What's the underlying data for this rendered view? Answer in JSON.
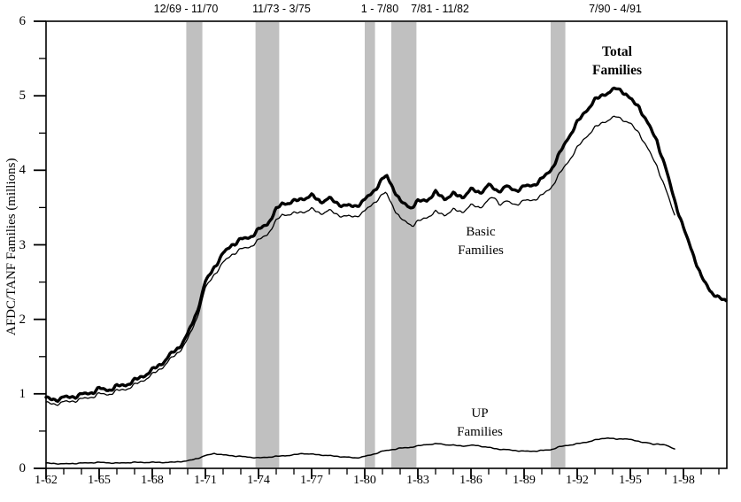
{
  "figure": {
    "background": "#ffffff",
    "line_color": "#000000",
    "recession_band_color": "#c0c0c0"
  },
  "chart_data": {
    "type": "line",
    "title": "",
    "xlabel": "",
    "ylabel": "AFDC/TANF Families (millions)",
    "ylim": [
      0,
      6
    ],
    "y_major_ticks": [
      0,
      1,
      2,
      3,
      4,
      5,
      6
    ],
    "y_minor_step": 0.5,
    "x_range_years": [
      1962,
      2000.45
    ],
    "x_minor_step_years": 1,
    "grid": false,
    "legend": "inline series labels",
    "x_major_ticks": [
      {
        "year": 1962,
        "label": "1-62"
      },
      {
        "year": 1965,
        "label": "1-65"
      },
      {
        "year": 1968,
        "label": "1-68"
      },
      {
        "year": 1971,
        "label": "1-71"
      },
      {
        "year": 1974,
        "label": "1-74"
      },
      {
        "year": 1977,
        "label": "1-77"
      },
      {
        "year": 1980,
        "label": "1-80"
      },
      {
        "year": 1983,
        "label": "1-83"
      },
      {
        "year": 1986,
        "label": "1-86"
      },
      {
        "year": 1989,
        "label": "1-89"
      },
      {
        "year": 1992,
        "label": "1-92"
      },
      {
        "year": 1995,
        "label": "1-95"
      },
      {
        "year": 1998,
        "label": "1-98"
      }
    ],
    "recessions": [
      {
        "label": "12/69 - 11/70",
        "start_year": 1969.92,
        "end_year": 1970.83,
        "label_anchor_year": 1969.9
      },
      {
        "label": "11/73 - 3/75",
        "start_year": 1973.83,
        "end_year": 1975.17,
        "label_anchor_year": 1975.3
      },
      {
        "label": "1 - 7/80",
        "start_year": 1980.0,
        "end_year": 1980.58,
        "label_anchor_year": 1980.85
      },
      {
        "label": "7/81 - 11/82",
        "start_year": 1981.5,
        "end_year": 1982.92,
        "label_anchor_year": 1984.25
      },
      {
        "label": "7/90 - 4/91",
        "start_year": 1990.5,
        "end_year": 1991.33,
        "label_anchor_year": 1994.15
      }
    ],
    "series": [
      {
        "name": "Total Families",
        "label_lines": [
          "Total",
          "Families"
        ],
        "label_anchor": {
          "year": 1994.25,
          "value": 5.72
        },
        "stroke_width": 3.4,
        "seasonal_wiggle": 0.028,
        "points": [
          [
            1962.0,
            0.94
          ],
          [
            1962.5,
            0.92
          ],
          [
            1963.0,
            0.95
          ],
          [
            1963.5,
            0.96
          ],
          [
            1964.0,
            0.99
          ],
          [
            1964.5,
            1.01
          ],
          [
            1965.0,
            1.07
          ],
          [
            1965.5,
            1.05
          ],
          [
            1966.0,
            1.1
          ],
          [
            1966.5,
            1.12
          ],
          [
            1967.0,
            1.18
          ],
          [
            1967.5,
            1.24
          ],
          [
            1968.0,
            1.32
          ],
          [
            1968.5,
            1.4
          ],
          [
            1969.0,
            1.52
          ],
          [
            1969.5,
            1.62
          ],
          [
            1970.0,
            1.8
          ],
          [
            1970.5,
            2.08
          ],
          [
            1971.0,
            2.5
          ],
          [
            1971.5,
            2.7
          ],
          [
            1972.0,
            2.88
          ],
          [
            1972.5,
            3.0
          ],
          [
            1973.0,
            3.07
          ],
          [
            1973.5,
            3.1
          ],
          [
            1974.0,
            3.2
          ],
          [
            1974.5,
            3.28
          ],
          [
            1975.0,
            3.47
          ],
          [
            1975.33,
            3.55
          ],
          [
            1976.0,
            3.58
          ],
          [
            1976.5,
            3.62
          ],
          [
            1977.0,
            3.66
          ],
          [
            1977.5,
            3.58
          ],
          [
            1978.0,
            3.62
          ],
          [
            1978.5,
            3.55
          ],
          [
            1979.0,
            3.52
          ],
          [
            1979.5,
            3.52
          ],
          [
            1980.0,
            3.6
          ],
          [
            1980.5,
            3.72
          ],
          [
            1981.0,
            3.88
          ],
          [
            1981.25,
            3.92
          ],
          [
            1981.75,
            3.7
          ],
          [
            1982.0,
            3.58
          ],
          [
            1982.6,
            3.5
          ],
          [
            1983.0,
            3.58
          ],
          [
            1983.5,
            3.6
          ],
          [
            1984.0,
            3.7
          ],
          [
            1984.5,
            3.62
          ],
          [
            1985.0,
            3.68
          ],
          [
            1985.5,
            3.64
          ],
          [
            1986.0,
            3.74
          ],
          [
            1986.5,
            3.7
          ],
          [
            1987.0,
            3.8
          ],
          [
            1987.5,
            3.72
          ],
          [
            1988.0,
            3.78
          ],
          [
            1988.5,
            3.73
          ],
          [
            1989.0,
            3.78
          ],
          [
            1989.5,
            3.8
          ],
          [
            1990.0,
            3.88
          ],
          [
            1990.5,
            4.0
          ],
          [
            1991.0,
            4.22
          ],
          [
            1991.5,
            4.44
          ],
          [
            1992.0,
            4.64
          ],
          [
            1992.5,
            4.8
          ],
          [
            1993.0,
            4.94
          ],
          [
            1993.5,
            5.02
          ],
          [
            1994.0,
            5.07
          ],
          [
            1994.25,
            5.1
          ],
          [
            1994.75,
            5.03
          ],
          [
            1995.0,
            4.95
          ],
          [
            1995.5,
            4.85
          ],
          [
            1996.0,
            4.62
          ],
          [
            1996.5,
            4.4
          ],
          [
            1997.0,
            4.02
          ],
          [
            1997.5,
            3.6
          ],
          [
            1998.0,
            3.22
          ],
          [
            1998.5,
            2.91
          ],
          [
            1999.0,
            2.57
          ],
          [
            1999.5,
            2.39
          ],
          [
            2000.0,
            2.28
          ],
          [
            2000.4,
            2.25
          ]
        ]
      },
      {
        "name": "Basic Families",
        "label_lines": [
          "Basic",
          "Families"
        ],
        "label_anchor": {
          "year": 1986.55,
          "value": 3.29
        },
        "stroke_width": 1.3,
        "seasonal_wiggle": 0.022,
        "points": [
          [
            1962.0,
            0.88
          ],
          [
            1962.5,
            0.86
          ],
          [
            1963.0,
            0.89
          ],
          [
            1963.5,
            0.9
          ],
          [
            1964.0,
            0.93
          ],
          [
            1964.5,
            0.95
          ],
          [
            1965.0,
            1.0
          ],
          [
            1965.5,
            0.99
          ],
          [
            1966.0,
            1.04
          ],
          [
            1966.5,
            1.06
          ],
          [
            1967.0,
            1.12
          ],
          [
            1967.5,
            1.18
          ],
          [
            1968.0,
            1.26
          ],
          [
            1968.5,
            1.34
          ],
          [
            1969.0,
            1.46
          ],
          [
            1969.5,
            1.56
          ],
          [
            1970.0,
            1.73
          ],
          [
            1970.5,
            2.0
          ],
          [
            1971.0,
            2.42
          ],
          [
            1971.5,
            2.6
          ],
          [
            1972.0,
            2.76
          ],
          [
            1972.5,
            2.87
          ],
          [
            1973.0,
            2.94
          ],
          [
            1973.5,
            2.97
          ],
          [
            1974.0,
            3.06
          ],
          [
            1974.5,
            3.14
          ],
          [
            1975.0,
            3.32
          ],
          [
            1975.33,
            3.4
          ],
          [
            1976.0,
            3.42
          ],
          [
            1976.5,
            3.44
          ],
          [
            1977.0,
            3.48
          ],
          [
            1977.5,
            3.42
          ],
          [
            1978.0,
            3.46
          ],
          [
            1978.5,
            3.4
          ],
          [
            1979.0,
            3.38
          ],
          [
            1979.5,
            3.38
          ],
          [
            1980.0,
            3.45
          ],
          [
            1980.5,
            3.56
          ],
          [
            1981.0,
            3.67
          ],
          [
            1981.2,
            3.7
          ],
          [
            1981.75,
            3.45
          ],
          [
            1982.0,
            3.35
          ],
          [
            1982.7,
            3.26
          ],
          [
            1983.0,
            3.31
          ],
          [
            1983.5,
            3.37
          ],
          [
            1984.0,
            3.44
          ],
          [
            1984.5,
            3.4
          ],
          [
            1985.0,
            3.47
          ],
          [
            1985.5,
            3.44
          ],
          [
            1986.0,
            3.53
          ],
          [
            1986.5,
            3.5
          ],
          [
            1987.0,
            3.6
          ],
          [
            1987.3,
            3.64
          ],
          [
            1987.6,
            3.55
          ],
          [
            1988.0,
            3.58
          ],
          [
            1988.5,
            3.54
          ],
          [
            1989.0,
            3.59
          ],
          [
            1989.5,
            3.6
          ],
          [
            1990.0,
            3.66
          ],
          [
            1990.5,
            3.76
          ],
          [
            1991.0,
            3.95
          ],
          [
            1991.5,
            4.12
          ],
          [
            1992.0,
            4.3
          ],
          [
            1992.5,
            4.45
          ],
          [
            1993.0,
            4.57
          ],
          [
            1993.5,
            4.65
          ],
          [
            1994.0,
            4.7
          ],
          [
            1994.25,
            4.72
          ],
          [
            1994.75,
            4.66
          ],
          [
            1995.0,
            4.62
          ],
          [
            1995.5,
            4.5
          ],
          [
            1996.0,
            4.28
          ],
          [
            1996.5,
            4.06
          ],
          [
            1997.0,
            3.74
          ],
          [
            1997.5,
            3.4
          ]
        ]
      },
      {
        "name": "UP Families",
        "label_lines": [
          "UP",
          "Families"
        ],
        "label_anchor": {
          "year": 1986.5,
          "value": 0.85
        },
        "stroke_width": 1.5,
        "seasonal_wiggle": 0.006,
        "points": [
          [
            1962.0,
            0.07
          ],
          [
            1963.0,
            0.06
          ],
          [
            1964.0,
            0.07
          ],
          [
            1965.0,
            0.08
          ],
          [
            1966.0,
            0.07
          ],
          [
            1967.0,
            0.08
          ],
          [
            1968.0,
            0.08
          ],
          [
            1969.0,
            0.08
          ],
          [
            1969.5,
            0.09
          ],
          [
            1970.0,
            0.1
          ],
          [
            1970.5,
            0.13
          ],
          [
            1971.0,
            0.17
          ],
          [
            1971.5,
            0.2
          ],
          [
            1972.0,
            0.18
          ],
          [
            1972.5,
            0.17
          ],
          [
            1973.0,
            0.16
          ],
          [
            1973.5,
            0.15
          ],
          [
            1974.0,
            0.14
          ],
          [
            1974.5,
            0.15
          ],
          [
            1975.0,
            0.16
          ],
          [
            1975.5,
            0.17
          ],
          [
            1976.0,
            0.18
          ],
          [
            1976.5,
            0.2
          ],
          [
            1977.0,
            0.19
          ],
          [
            1977.5,
            0.18
          ],
          [
            1978.0,
            0.17
          ],
          [
            1978.5,
            0.16
          ],
          [
            1979.0,
            0.15
          ],
          [
            1979.5,
            0.14
          ],
          [
            1980.0,
            0.16
          ],
          [
            1980.5,
            0.19
          ],
          [
            1981.0,
            0.23
          ],
          [
            1981.5,
            0.25
          ],
          [
            1982.0,
            0.27
          ],
          [
            1982.5,
            0.28
          ],
          [
            1983.0,
            0.3
          ],
          [
            1983.5,
            0.32
          ],
          [
            1984.2,
            0.33
          ],
          [
            1984.5,
            0.32
          ],
          [
            1985.0,
            0.31
          ],
          [
            1985.5,
            0.3
          ],
          [
            1986.2,
            0.31
          ],
          [
            1986.5,
            0.3
          ],
          [
            1987.0,
            0.28
          ],
          [
            1987.5,
            0.26
          ],
          [
            1988.0,
            0.25
          ],
          [
            1988.5,
            0.24
          ],
          [
            1989.0,
            0.23
          ],
          [
            1989.5,
            0.23
          ],
          [
            1990.0,
            0.24
          ],
          [
            1990.5,
            0.25
          ],
          [
            1991.0,
            0.29
          ],
          [
            1991.5,
            0.31
          ],
          [
            1992.0,
            0.33
          ],
          [
            1992.5,
            0.35
          ],
          [
            1993.0,
            0.38
          ],
          [
            1993.7,
            0.41
          ],
          [
            1994.2,
            0.39
          ],
          [
            1994.7,
            0.4
          ],
          [
            1995.3,
            0.37
          ],
          [
            1996.0,
            0.34
          ],
          [
            1996.3,
            0.32
          ],
          [
            1996.6,
            0.33
          ],
          [
            1997.0,
            0.31
          ],
          [
            1997.5,
            0.26
          ]
        ]
      }
    ]
  }
}
